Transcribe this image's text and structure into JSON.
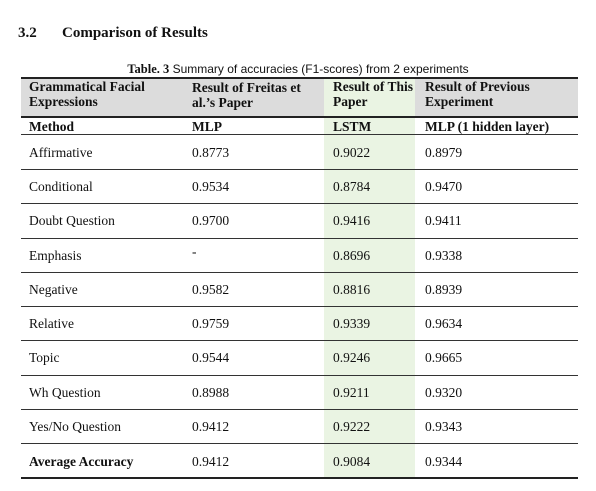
{
  "section": {
    "number": "3.2",
    "title": "Comparison of Results"
  },
  "caption": {
    "label": "Table. 3",
    "text": " Summary of accuracies (F1-scores) from 2 experiments"
  },
  "table": {
    "headers": [
      "Grammatical Facial Expressions",
      "Result of Freitas et al.’s Paper",
      "Result of This Paper",
      "Result of Previous Experiment"
    ],
    "subheaders": [
      "Method",
      "MLP",
      "LSTM",
      "MLP (1 hidden layer)"
    ],
    "rows": [
      [
        "Affirmative",
        "0.8773",
        "0.9022",
        "0.8979"
      ],
      [
        "Conditional",
        "0.9534",
        "0.8784",
        "0.9470"
      ],
      [
        "Doubt Question",
        "0.9700",
        "0.9416",
        "0.9411"
      ],
      [
        "Emphasis",
        "-",
        "0.8696",
        "0.9338"
      ],
      [
        "Negative",
        "0.9582",
        "0.8816",
        "0.8939"
      ],
      [
        "Relative",
        "0.9759",
        "0.9339",
        "0.9634"
      ],
      [
        "Topic",
        "0.9544",
        "0.9246",
        "0.9665"
      ],
      [
        "Wh Question",
        "0.8988",
        "0.9211",
        "0.9320"
      ],
      [
        "Yes/No Question",
        "0.9412",
        "0.9222",
        "0.9343"
      ],
      [
        "Average Accuracy",
        "0.9412",
        "0.9084",
        "0.9344"
      ]
    ]
  },
  "colors": {
    "header_bg": "#dcdcdc",
    "highlight_column": "#eaf4e3"
  }
}
